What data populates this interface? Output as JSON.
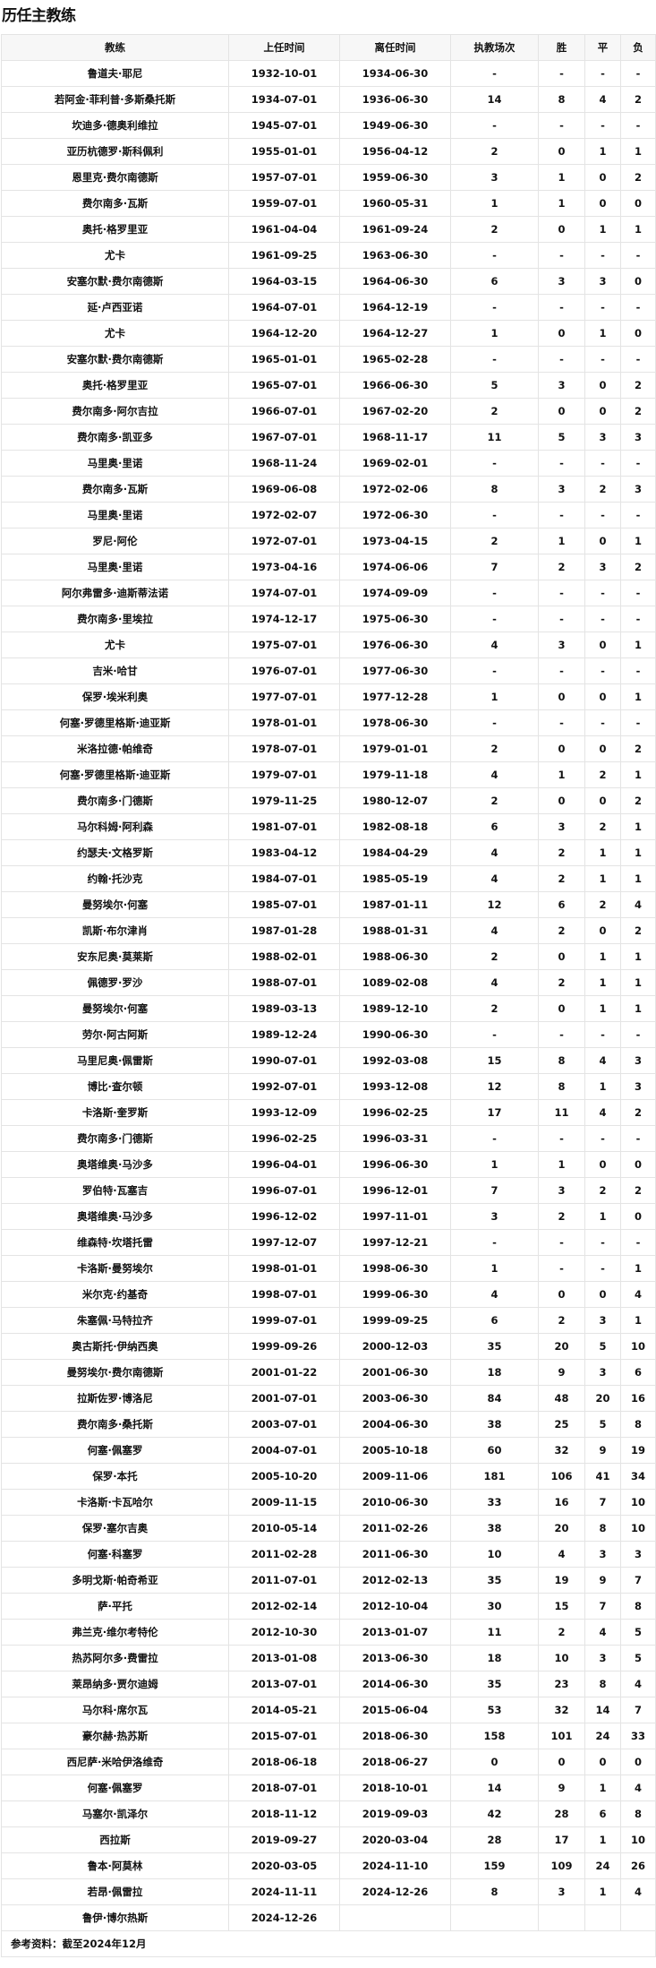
{
  "title": "历任主教练",
  "table": {
    "headers": [
      "教练",
      "上任时间",
      "离任时间",
      "执教场次",
      "胜",
      "平",
      "负"
    ],
    "rows": [
      [
        "鲁道夫·耶尼",
        "1932-10-01",
        "1934-06-30",
        "-",
        "-",
        "-",
        "-"
      ],
      [
        "若阿金·菲利普·多斯桑托斯",
        "1934-07-01",
        "1936-06-30",
        "14",
        "8",
        "4",
        "2"
      ],
      [
        "坎迪多·德奥利维拉",
        "1945-07-01",
        "1949-06-30",
        "-",
        "-",
        "-",
        "-"
      ],
      [
        "亚历杭德罗·斯科佩利",
        "1955-01-01",
        "1956-04-12",
        "2",
        "0",
        "1",
        "1"
      ],
      [
        "恩里克·费尔南德斯",
        "1957-07-01",
        "1959-06-30",
        "3",
        "1",
        "0",
        "2"
      ],
      [
        "费尔南多·瓦斯",
        "1959-07-01",
        "1960-05-31",
        "1",
        "1",
        "0",
        "0"
      ],
      [
        "奥托·格罗里亚",
        "1961-04-04",
        "1961-09-24",
        "2",
        "0",
        "1",
        "1"
      ],
      [
        "尤卡",
        "1961-09-25",
        "1963-06-30",
        "-",
        "-",
        "-",
        "-"
      ],
      [
        "安塞尔默·费尔南德斯",
        "1964-03-15",
        "1964-06-30",
        "6",
        "3",
        "3",
        "0"
      ],
      [
        "延·卢西亚诺",
        "1964-07-01",
        "1964-12-19",
        "-",
        "-",
        "-",
        "-"
      ],
      [
        "尤卡",
        "1964-12-20",
        "1964-12-27",
        "1",
        "0",
        "1",
        "0"
      ],
      [
        "安塞尔默·费尔南德斯",
        "1965-01-01",
        "1965-02-28",
        "-",
        "-",
        "-",
        "-"
      ],
      [
        "奥托·格罗里亚",
        "1965-07-01",
        "1966-06-30",
        "5",
        "3",
        "0",
        "2"
      ],
      [
        "费尔南多·阿尔吉拉",
        "1966-07-01",
        "1967-02-20",
        "2",
        "0",
        "0",
        "2"
      ],
      [
        "费尔南多·凯亚多",
        "1967-07-01",
        "1968-11-17",
        "11",
        "5",
        "3",
        "3"
      ],
      [
        "马里奥·里诺",
        "1968-11-24",
        "1969-02-01",
        "-",
        "-",
        "-",
        "-"
      ],
      [
        "费尔南多·瓦斯",
        "1969-06-08",
        "1972-02-06",
        "8",
        "3",
        "2",
        "3"
      ],
      [
        "马里奥·里诺",
        "1972-02-07",
        "1972-06-30",
        "-",
        "-",
        "-",
        "-"
      ],
      [
        "罗尼·阿伦",
        "1972-07-01",
        "1973-04-15",
        "2",
        "1",
        "0",
        "1"
      ],
      [
        "马里奥·里诺",
        "1973-04-16",
        "1974-06-06",
        "7",
        "2",
        "3",
        "2"
      ],
      [
        "阿尔弗雷多·迪斯蒂法诺",
        "1974-07-01",
        "1974-09-09",
        "-",
        "-",
        "-",
        "-"
      ],
      [
        "费尔南多·里埃拉",
        "1974-12-17",
        "1975-06-30",
        "-",
        "-",
        "-",
        "-"
      ],
      [
        "尤卡",
        "1975-07-01",
        "1976-06-30",
        "4",
        "3",
        "0",
        "1"
      ],
      [
        "吉米·哈甘",
        "1976-07-01",
        "1977-06-30",
        "-",
        "-",
        "-",
        "-"
      ],
      [
        "保罗·埃米利奥",
        "1977-07-01",
        "1977-12-28",
        "1",
        "0",
        "0",
        "1"
      ],
      [
        "何塞·罗德里格斯·迪亚斯",
        "1978-01-01",
        "1978-06-30",
        "-",
        "-",
        "-",
        "-"
      ],
      [
        "米洛拉德·帕维奇",
        "1978-07-01",
        "1979-01-01",
        "2",
        "0",
        "0",
        "2"
      ],
      [
        "何塞·罗德里格斯·迪亚斯",
        "1979-07-01",
        "1979-11-18",
        "4",
        "1",
        "2",
        "1"
      ],
      [
        "费尔南多·门德斯",
        "1979-11-25",
        "1980-12-07",
        "2",
        "0",
        "0",
        "2"
      ],
      [
        "马尔科姆·阿利森",
        "1981-07-01",
        "1982-08-18",
        "6",
        "3",
        "2",
        "1"
      ],
      [
        "约瑟夫·文格罗斯",
        "1983-04-12",
        "1984-04-29",
        "4",
        "2",
        "1",
        "1"
      ],
      [
        "约翰·托沙克",
        "1984-07-01",
        "1985-05-19",
        "4",
        "2",
        "1",
        "1"
      ],
      [
        "曼努埃尔·何塞",
        "1985-07-01",
        "1987-01-11",
        "12",
        "6",
        "2",
        "4"
      ],
      [
        "凯斯·布尔津肖",
        "1987-01-28",
        "1988-01-31",
        "4",
        "2",
        "0",
        "2"
      ],
      [
        "安东尼奥·莫莱斯",
        "1988-02-01",
        "1988-06-30",
        "2",
        "0",
        "1",
        "1"
      ],
      [
        "佩德罗·罗沙",
        "1988-07-01",
        "1089-02-08",
        "4",
        "2",
        "1",
        "1"
      ],
      [
        "曼努埃尔·何塞",
        "1989-03-13",
        "1989-12-10",
        "2",
        "0",
        "1",
        "1"
      ],
      [
        "劳尔·阿古阿斯",
        "1989-12-24",
        "1990-06-30",
        "-",
        "-",
        "-",
        "-"
      ],
      [
        "马里尼奥·佩雷斯",
        "1990-07-01",
        "1992-03-08",
        "15",
        "8",
        "4",
        "3"
      ],
      [
        "博比·查尔顿",
        "1992-07-01",
        "1993-12-08",
        "12",
        "8",
        "1",
        "3"
      ],
      [
        "卡洛斯·奎罗斯",
        "1993-12-09",
        "1996-02-25",
        "17",
        "11",
        "4",
        "2"
      ],
      [
        "费尔南多·门德斯",
        "1996-02-25",
        "1996-03-31",
        "-",
        "-",
        "-",
        "-"
      ],
      [
        "奥塔维奥·马沙多",
        "1996-04-01",
        "1996-06-30",
        "1",
        "1",
        "0",
        "0"
      ],
      [
        "罗伯特·瓦塞吉",
        "1996-07-01",
        "1996-12-01",
        "7",
        "3",
        "2",
        "2"
      ],
      [
        "奥塔维奥·马沙多",
        "1996-12-02",
        "1997-11-01",
        "3",
        "2",
        "1",
        "0"
      ],
      [
        "维森特·坎塔托雷",
        "1997-12-07",
        "1997-12-21",
        "-",
        "-",
        "-",
        "-"
      ],
      [
        "卡洛斯·曼努埃尔",
        "1998-01-01",
        "1998-06-30",
        "1",
        "-",
        "-",
        "1"
      ],
      [
        "米尔克·约基奇",
        "1998-07-01",
        "1999-06-30",
        "4",
        "0",
        "0",
        "4"
      ],
      [
        "朱塞佩·马特拉齐",
        "1999-07-01",
        "1999-09-25",
        "6",
        "2",
        "3",
        "1"
      ],
      [
        "奥古斯托·伊纳西奥",
        "1999-09-26",
        "2000-12-03",
        "35",
        "20",
        "5",
        "10"
      ],
      [
        "曼努埃尔·费尔南德斯",
        "2001-01-22",
        "2001-06-30",
        "18",
        "9",
        "3",
        "6"
      ],
      [
        "拉斯佐罗·博洛尼",
        "2001-07-01",
        "2003-06-30",
        "84",
        "48",
        "20",
        "16"
      ],
      [
        "费尔南多·桑托斯",
        "2003-07-01",
        "2004-06-30",
        "38",
        "25",
        "5",
        "8"
      ],
      [
        "何塞·佩塞罗",
        "2004-07-01",
        "2005-10-18",
        "60",
        "32",
        "9",
        "19"
      ],
      [
        "保罗·本托",
        "2005-10-20",
        "2009-11-06",
        "181",
        "106",
        "41",
        "34"
      ],
      [
        "卡洛斯·卡瓦哈尔",
        "2009-11-15",
        "2010-06-30",
        "33",
        "16",
        "7",
        "10"
      ],
      [
        "保罗·塞尔吉奥",
        "2010-05-14",
        "2011-02-26",
        "38",
        "20",
        "8",
        "10"
      ],
      [
        "何塞·科塞罗",
        "2011-02-28",
        "2011-06-30",
        "10",
        "4",
        "3",
        "3"
      ],
      [
        "多明戈斯·帕奇希亚",
        "2011-07-01",
        "2012-02-13",
        "35",
        "19",
        "9",
        "7"
      ],
      [
        "萨·平托",
        "2012-02-14",
        "2012-10-04",
        "30",
        "15",
        "7",
        "8"
      ],
      [
        "弗兰克·维尔考特伦",
        "2012-10-30",
        "2013-01-07",
        "11",
        "2",
        "4",
        "5"
      ],
      [
        "热苏阿尔多·费雷拉",
        "2013-01-08",
        "2013-06-30",
        "18",
        "10",
        "3",
        "5"
      ],
      [
        "莱昂纳多·贾尔迪姆",
        "2013-07-01",
        "2014-06-30",
        "35",
        "23",
        "8",
        "4"
      ],
      [
        "马尔科·席尔瓦",
        "2014-05-21",
        "2015-06-04",
        "53",
        "32",
        "14",
        "7"
      ],
      [
        "豪尔赫·热苏斯",
        "2015-07-01",
        "2018-06-30",
        "158",
        "101",
        "24",
        "33"
      ],
      [
        "西尼萨·米哈伊洛维奇",
        "2018-06-18",
        "2018-06-27",
        "0",
        "0",
        "0",
        "0"
      ],
      [
        "何塞·佩塞罗",
        "2018-07-01",
        "2018-10-01",
        "14",
        "9",
        "1",
        "4"
      ],
      [
        "马塞尔·凯泽尔",
        "2018-11-12",
        "2019-09-03",
        "42",
        "28",
        "6",
        "8"
      ],
      [
        "西拉斯",
        "2019-09-27",
        "2020-03-04",
        "28",
        "17",
        "1",
        "10"
      ],
      [
        "鲁本·阿莫林",
        "2020-03-05",
        "2024-11-10",
        "159",
        "109",
        "24",
        "26"
      ],
      [
        "若昂·佩雷拉",
        "2024-11-11",
        "2024-12-26",
        "8",
        "3",
        "1",
        "4"
      ],
      [
        "鲁伊·博尔热斯",
        "2024-12-26",
        "",
        "",
        "",
        "",
        ""
      ]
    ],
    "footer": "参考资料：截至2024年12月"
  }
}
